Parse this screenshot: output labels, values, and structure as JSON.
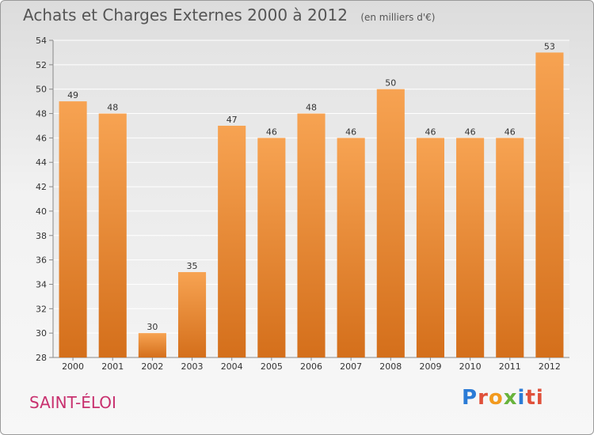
{
  "title": "Achats et Charges Externes 2000 à 2012",
  "subtitle": "(en milliers d'€)",
  "commune": "SAINT-ÉLOI",
  "logo_letters": [
    "P",
    "r",
    "o",
    "x",
    "i",
    "ti"
  ],
  "colors": {
    "bar_top": "#f7a352",
    "bar_bottom": "#d46f1b",
    "title": "#555555",
    "commune": "#c8306e"
  },
  "chart_data": {
    "type": "bar",
    "title": "Achats et Charges Externes 2000 à 2012",
    "subtitle": "(en milliers d'€)",
    "categories": [
      "2000",
      "2001",
      "2002",
      "2003",
      "2004",
      "2005",
      "2006",
      "2007",
      "2008",
      "2009",
      "2010",
      "2011",
      "2012"
    ],
    "values": [
      49,
      48,
      30,
      35,
      47,
      46,
      48,
      46,
      50,
      46,
      46,
      46,
      53
    ],
    "ylim": [
      28,
      54
    ],
    "yticks": [
      28,
      30,
      32,
      34,
      36,
      38,
      40,
      42,
      44,
      46,
      48,
      50,
      52,
      54
    ],
    "grid": true,
    "xlabel": "",
    "ylabel": ""
  }
}
